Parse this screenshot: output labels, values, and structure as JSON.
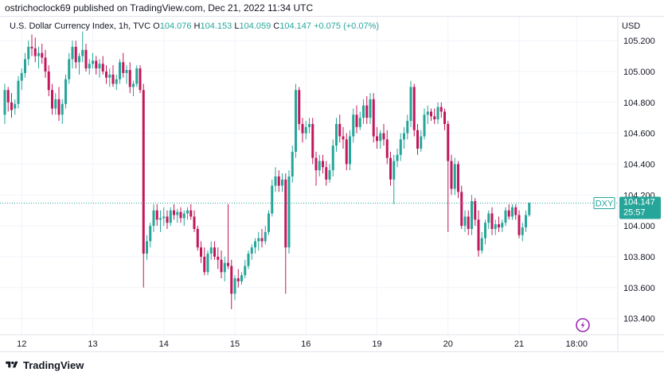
{
  "publisher_line": "ostrichoclock69 published on TradingView.com, Dec 21, 2022 11:34 UTC",
  "legend": {
    "symbol": "U.S. Dollar Currency Index, 1h, TVC",
    "open_label": "O",
    "open": "104.076",
    "high_label": "H",
    "high": "104.153",
    "low_label": "L",
    "low": "104.059",
    "close_label": "C",
    "close": "104.147",
    "change": "+0.075 (+0.07%)"
  },
  "currency": "USD",
  "price_tag": {
    "ticker": "DXY",
    "price": "104.147",
    "countdown": "25:57"
  },
  "footer_brand": "TradingView",
  "icons": [
    "lightning-icon",
    "tradingview-logo-icon"
  ],
  "colors": {
    "up": "#26a69a",
    "down": "#c2185b",
    "grid": "#f0f3fa",
    "price_line": "#26a69a"
  },
  "chart_data": {
    "type": "candlestick",
    "ylim": [
      103.3,
      105.35
    ],
    "y_ticks": [
      "105.200",
      "105.000",
      "104.800",
      "104.600",
      "104.400",
      "104.200",
      "104.000",
      "103.800",
      "103.600",
      "103.400"
    ],
    "x_ticks": [
      {
        "label": "12",
        "bar": 5
      },
      {
        "label": "13",
        "bar": 26
      },
      {
        "label": "14",
        "bar": 47
      },
      {
        "label": "15",
        "bar": 68
      },
      {
        "label": "16",
        "bar": 89
      },
      {
        "label": "19",
        "bar": 110
      },
      {
        "label": "20",
        "bar": 131
      },
      {
        "label": "21",
        "bar": 152
      },
      {
        "label": "18:00",
        "bar": 169
      }
    ],
    "candles": [
      [
        104.72,
        104.92,
        104.66,
        104.88
      ],
      [
        104.88,
        104.9,
        104.74,
        104.8
      ],
      [
        104.8,
        104.86,
        104.7,
        104.75
      ],
      [
        104.76,
        104.82,
        104.72,
        104.79
      ],
      [
        104.79,
        104.97,
        104.76,
        104.94
      ],
      [
        104.94,
        105.02,
        104.88,
        104.99
      ],
      [
        104.99,
        105.12,
        104.96,
        105.08
      ],
      [
        105.08,
        105.2,
        105.04,
        105.16
      ],
      [
        105.16,
        105.24,
        105.1,
        105.15
      ],
      [
        105.15,
        105.22,
        105.06,
        105.1
      ],
      [
        105.1,
        105.16,
        105.02,
        105.12
      ],
      [
        105.12,
        105.18,
        105.05,
        105.09
      ],
      [
        105.09,
        105.14,
        104.96,
        105.0
      ],
      [
        105.0,
        105.04,
        104.84,
        104.88
      ],
      [
        104.88,
        104.92,
        104.72,
        104.76
      ],
      [
        104.76,
        104.86,
        104.72,
        104.82
      ],
      [
        104.82,
        104.9,
        104.68,
        104.72
      ],
      [
        104.72,
        104.82,
        104.66,
        104.79
      ],
      [
        104.79,
        104.98,
        104.76,
        104.95
      ],
      [
        104.95,
        105.12,
        104.92,
        105.08
      ],
      [
        105.08,
        105.2,
        105.02,
        105.16
      ],
      [
        105.16,
        105.2,
        105.02,
        105.06
      ],
      [
        105.06,
        105.12,
        104.98,
        105.1
      ],
      [
        105.1,
        105.26,
        105.06,
        105.14
      ],
      [
        105.14,
        105.18,
        105.0,
        105.02
      ],
      [
        105.02,
        105.08,
        104.98,
        105.05
      ],
      [
        105.05,
        105.12,
        105.02,
        105.07
      ],
      [
        105.07,
        105.1,
        104.98,
        105.02
      ],
      [
        105.02,
        105.08,
        104.96,
        105.05
      ],
      [
        105.05,
        105.1,
        104.98,
        105.0
      ],
      [
        105.0,
        105.04,
        104.92,
        104.96
      ],
      [
        104.96,
        105.02,
        104.9,
        104.98
      ],
      [
        104.98,
        105.04,
        104.9,
        104.92
      ],
      [
        104.92,
        104.98,
        104.88,
        104.95
      ],
      [
        104.95,
        105.08,
        104.92,
        105.06
      ],
      [
        105.06,
        105.12,
        104.96,
        104.99
      ],
      [
        104.99,
        105.04,
        104.92,
        105.01
      ],
      [
        105.01,
        105.06,
        104.86,
        104.9
      ],
      [
        104.9,
        104.94,
        104.84,
        104.92
      ],
      [
        104.92,
        105.04,
        104.9,
        105.02
      ],
      [
        105.02,
        105.04,
        104.86,
        104.88
      ],
      [
        104.88,
        104.92,
        103.6,
        103.82
      ],
      [
        103.82,
        103.94,
        103.78,
        103.9
      ],
      [
        103.9,
        104.02,
        103.86,
        104.0
      ],
      [
        104.0,
        104.14,
        103.96,
        104.1
      ],
      [
        104.1,
        104.14,
        104.0,
        104.04
      ],
      [
        104.04,
        104.1,
        103.96,
        104.05
      ],
      [
        104.05,
        104.12,
        104.0,
        104.06
      ],
      [
        104.06,
        104.1,
        103.98,
        104.02
      ],
      [
        104.02,
        104.12,
        104.0,
        104.1
      ],
      [
        104.1,
        104.14,
        104.04,
        104.07
      ],
      [
        104.07,
        104.11,
        104.02,
        104.09
      ],
      [
        104.09,
        104.12,
        104.02,
        104.05
      ],
      [
        104.05,
        104.1,
        104.0,
        104.08
      ],
      [
        104.08,
        104.12,
        104.04,
        104.1
      ],
      [
        104.1,
        104.14,
        104.04,
        104.06
      ],
      [
        104.06,
        104.1,
        103.96,
        103.98
      ],
      [
        103.98,
        104.0,
        103.84,
        103.86
      ],
      [
        103.86,
        103.9,
        103.76,
        103.8
      ],
      [
        103.8,
        103.86,
        103.68,
        103.7
      ],
      [
        103.7,
        103.84,
        103.68,
        103.82
      ],
      [
        103.82,
        103.9,
        103.78,
        103.86
      ],
      [
        103.86,
        103.9,
        103.78,
        103.8
      ],
      [
        103.8,
        103.86,
        103.72,
        103.78
      ],
      [
        103.78,
        103.84,
        103.66,
        103.7
      ],
      [
        103.7,
        103.8,
        103.64,
        103.76
      ],
      [
        103.76,
        104.14,
        103.72,
        103.74
      ],
      [
        103.74,
        103.78,
        103.46,
        103.56
      ],
      [
        103.56,
        103.68,
        103.52,
        103.66
      ],
      [
        103.66,
        103.72,
        103.6,
        103.64
      ],
      [
        103.64,
        103.7,
        103.62,
        103.68
      ],
      [
        103.68,
        103.78,
        103.66,
        103.74
      ],
      [
        103.74,
        103.84,
        103.72,
        103.82
      ],
      [
        103.82,
        103.88,
        103.78,
        103.86
      ],
      [
        103.86,
        103.92,
        103.82,
        103.9
      ],
      [
        103.9,
        103.96,
        103.84,
        103.92
      ],
      [
        103.92,
        103.98,
        103.86,
        103.9
      ],
      [
        103.9,
        104.0,
        103.88,
        103.96
      ],
      [
        103.96,
        104.1,
        103.94,
        104.08
      ],
      [
        104.08,
        104.3,
        104.06,
        104.26
      ],
      [
        104.26,
        104.38,
        104.22,
        104.32
      ],
      [
        104.32,
        104.36,
        104.22,
        104.26
      ],
      [
        104.26,
        104.34,
        104.22,
        104.3
      ],
      [
        104.3,
        104.34,
        103.56,
        103.86
      ],
      [
        103.86,
        104.36,
        103.82,
        104.32
      ],
      [
        104.32,
        104.52,
        104.28,
        104.48
      ],
      [
        104.48,
        104.92,
        104.44,
        104.88
      ],
      [
        104.88,
        104.9,
        104.62,
        104.66
      ],
      [
        104.66,
        104.7,
        104.54,
        104.6
      ],
      [
        104.6,
        104.68,
        104.56,
        104.64
      ],
      [
        104.64,
        104.7,
        104.6,
        104.66
      ],
      [
        104.66,
        104.7,
        104.4,
        104.44
      ],
      [
        104.44,
        104.48,
        104.26,
        104.36
      ],
      [
        104.36,
        104.46,
        104.32,
        104.42
      ],
      [
        104.42,
        104.46,
        104.34,
        104.38
      ],
      [
        104.38,
        104.42,
        104.26,
        104.3
      ],
      [
        104.3,
        104.4,
        104.28,
        104.36
      ],
      [
        104.36,
        104.56,
        104.32,
        104.52
      ],
      [
        104.52,
        104.7,
        104.48,
        104.66
      ],
      [
        104.66,
        104.72,
        104.54,
        104.58
      ],
      [
        104.58,
        104.64,
        104.5,
        104.56
      ],
      [
        104.56,
        104.6,
        104.36,
        104.4
      ],
      [
        104.4,
        104.62,
        104.36,
        104.58
      ],
      [
        104.58,
        104.76,
        104.54,
        104.72
      ],
      [
        104.72,
        104.78,
        104.6,
        104.64
      ],
      [
        104.64,
        104.74,
        104.62,
        104.7
      ],
      [
        104.7,
        104.82,
        104.66,
        104.78
      ],
      [
        104.78,
        104.84,
        104.66,
        104.7
      ],
      [
        104.7,
        104.86,
        104.66,
        104.82
      ],
      [
        104.82,
        104.86,
        104.54,
        104.58
      ],
      [
        104.58,
        104.64,
        104.5,
        104.55
      ],
      [
        104.55,
        104.62,
        104.5,
        104.6
      ],
      [
        104.6,
        104.66,
        104.52,
        104.56
      ],
      [
        104.56,
        104.62,
        104.4,
        104.44
      ],
      [
        104.44,
        104.48,
        104.26,
        104.3
      ],
      [
        104.3,
        104.46,
        104.14,
        104.42
      ],
      [
        104.42,
        104.5,
        104.38,
        104.46
      ],
      [
        104.46,
        104.6,
        104.42,
        104.56
      ],
      [
        104.56,
        104.64,
        104.5,
        104.6
      ],
      [
        104.6,
        104.72,
        104.56,
        104.68
      ],
      [
        104.68,
        104.94,
        104.64,
        104.9
      ],
      [
        104.9,
        104.92,
        104.58,
        104.62
      ],
      [
        104.62,
        104.66,
        104.46,
        104.5
      ],
      [
        104.5,
        104.62,
        104.48,
        104.58
      ],
      [
        104.58,
        104.76,
        104.56,
        104.72
      ],
      [
        104.72,
        104.78,
        104.66,
        104.74
      ],
      [
        104.74,
        104.76,
        104.68,
        104.71
      ],
      [
        104.71,
        104.76,
        104.66,
        104.69
      ],
      [
        104.69,
        104.8,
        104.66,
        104.77
      ],
      [
        104.77,
        104.8,
        104.7,
        104.74
      ],
      [
        104.74,
        104.76,
        104.62,
        104.66
      ],
      [
        104.66,
        104.68,
        103.96,
        104.42
      ],
      [
        104.42,
        104.46,
        104.2,
        104.24
      ],
      [
        104.24,
        104.44,
        104.2,
        104.4
      ],
      [
        104.4,
        104.42,
        104.18,
        104.22
      ],
      [
        104.22,
        104.26,
        103.98,
        104.0
      ],
      [
        104.0,
        104.1,
        103.96,
        104.06
      ],
      [
        104.06,
        104.1,
        103.94,
        103.98
      ],
      [
        103.98,
        104.2,
        103.94,
        104.16
      ],
      [
        104.16,
        104.18,
        104.0,
        104.04
      ],
      [
        104.04,
        104.1,
        103.8,
        103.84
      ],
      [
        103.84,
        103.96,
        103.82,
        103.92
      ],
      [
        103.92,
        104.04,
        103.88,
        104.02
      ],
      [
        104.02,
        104.1,
        103.98,
        104.08
      ],
      [
        104.08,
        104.12,
        103.94,
        103.98
      ],
      [
        103.98,
        104.04,
        103.94,
        104.01
      ],
      [
        104.01,
        104.06,
        103.96,
        103.99
      ],
      [
        103.99,
        104.04,
        103.96,
        104.02
      ],
      [
        104.02,
        104.12,
        104.0,
        104.1
      ],
      [
        104.1,
        104.14,
        104.04,
        104.06
      ],
      [
        104.06,
        104.14,
        104.04,
        104.12
      ],
      [
        104.12,
        104.14,
        104.04,
        104.07
      ],
      [
        104.07,
        104.1,
        103.92,
        103.94
      ],
      [
        103.94,
        104.02,
        103.9,
        103.99
      ],
      [
        103.99,
        104.1,
        103.96,
        104.07
      ],
      [
        104.07,
        104.153,
        104.059,
        104.147
      ]
    ]
  }
}
